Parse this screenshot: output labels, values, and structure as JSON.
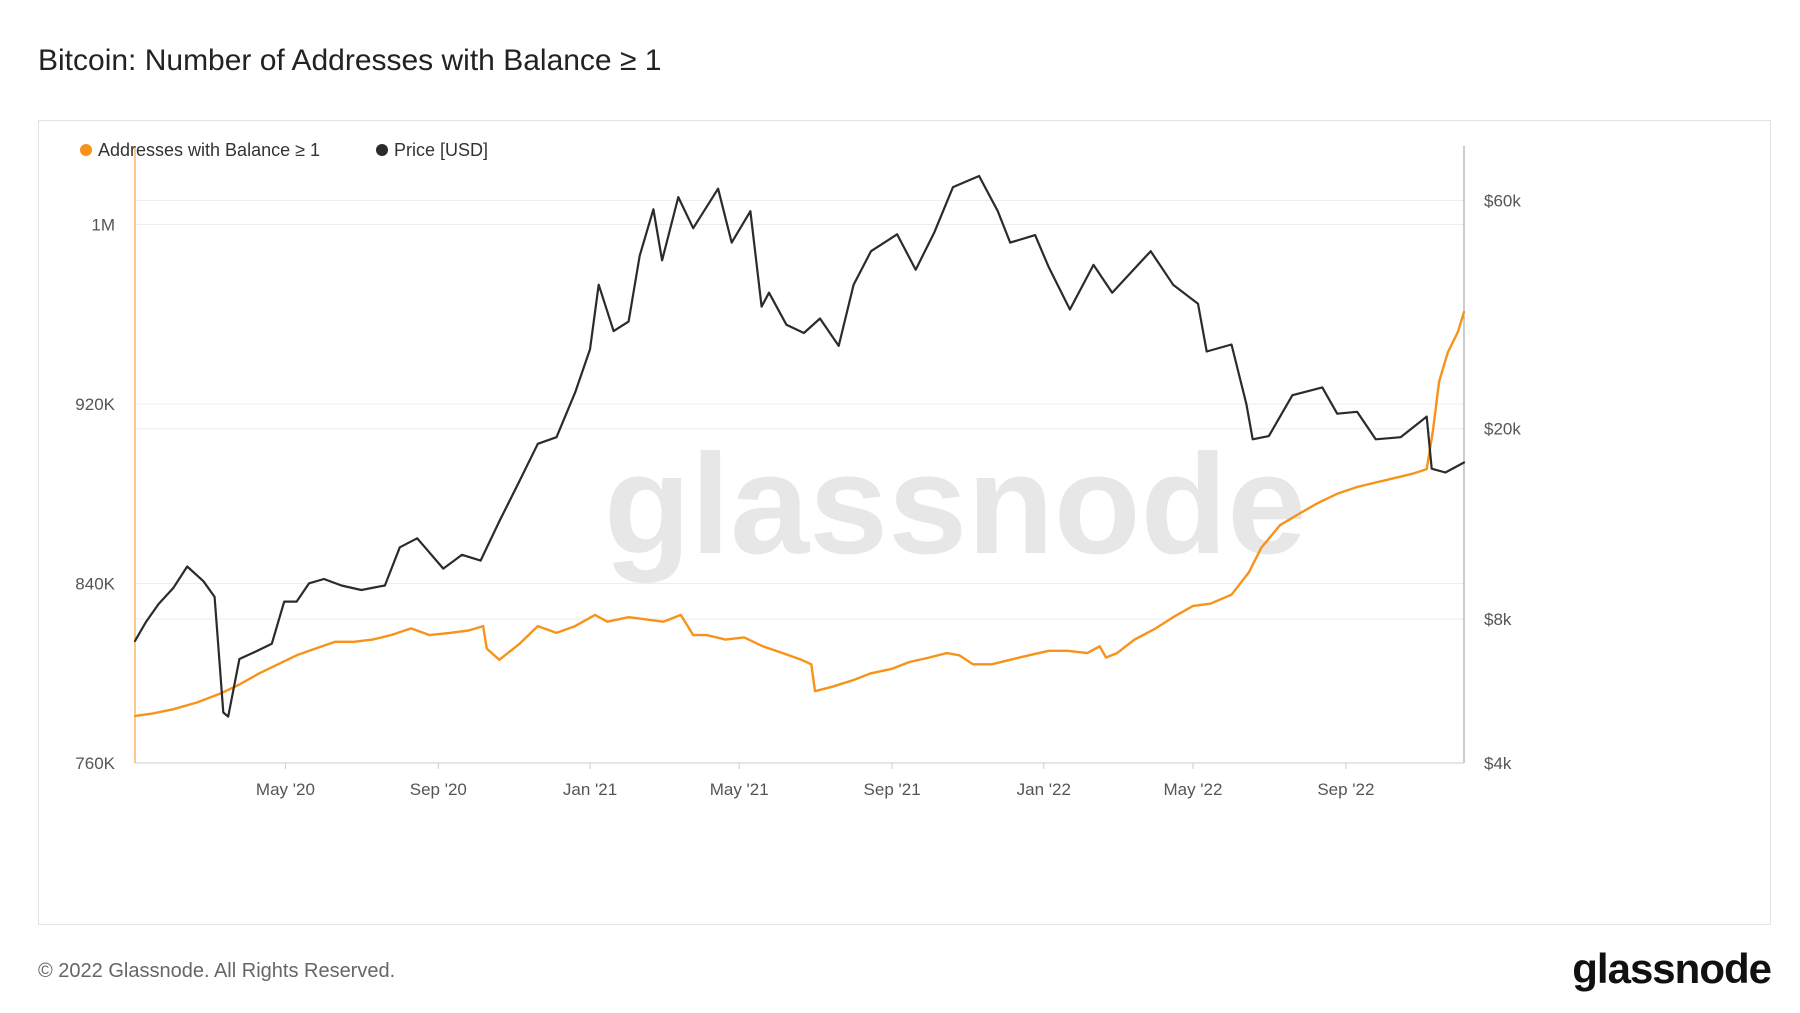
{
  "page": {
    "title": "Bitcoin: Number of Addresses with Balance ≥ 1",
    "copyright": "© 2022 Glassnode. All Rights Reserved.",
    "logo": "glassnode",
    "watermark": "glassnode"
  },
  "colors": {
    "addresses": "#f7931a",
    "price": "#2b2b2b",
    "grid": "#ededed",
    "axis_text": "#555555"
  },
  "chart_data": {
    "type": "line",
    "title": "Bitcoin: Number of Addresses with Balance ≥ 1",
    "legend_position": "top-left",
    "grid": true,
    "x_ticks": [
      "May '20",
      "Sep '20",
      "Jan '21",
      "May '21",
      "Sep '21",
      "Jan '22",
      "May '22",
      "Sep '22"
    ],
    "x_tick_dates": [
      "2020-05-01",
      "2020-09-01",
      "2021-01-01",
      "2021-05-01",
      "2021-09-01",
      "2022-01-01",
      "2022-05-01",
      "2022-09-01"
    ],
    "x_range": [
      "2020-01-01",
      "2022-12-05"
    ],
    "y_left": {
      "ticks": [
        760000,
        840000,
        920000,
        1000000
      ],
      "tick_labels": [
        "760K",
        "840K",
        "920K",
        "1M"
      ],
      "range": [
        760000,
        1035000
      ]
    },
    "y_right": {
      "scale": "log",
      "ticks": [
        4000,
        8000,
        20000,
        60000
      ],
      "tick_labels": [
        "$4k",
        "$8k",
        "$20k",
        "$60k"
      ],
      "range": [
        4000,
        78000
      ]
    },
    "series": [
      {
        "name": "Addresses with Balance ≥ 1",
        "axis": "left",
        "color": "#f7931a",
        "points": [
          [
            "2020-01-01",
            781000
          ],
          [
            "2020-01-15",
            782000
          ],
          [
            "2020-02-01",
            784000
          ],
          [
            "2020-02-20",
            787000
          ],
          [
            "2020-03-10",
            791000
          ],
          [
            "2020-03-25",
            795000
          ],
          [
            "2020-04-10",
            800000
          ],
          [
            "2020-04-25",
            804000
          ],
          [
            "2020-05-10",
            808000
          ],
          [
            "2020-05-25",
            811000
          ],
          [
            "2020-06-10",
            814000
          ],
          [
            "2020-06-25",
            814000
          ],
          [
            "2020-07-10",
            815000
          ],
          [
            "2020-07-25",
            817000
          ],
          [
            "2020-08-10",
            820000
          ],
          [
            "2020-08-25",
            817000
          ],
          [
            "2020-09-10",
            818000
          ],
          [
            "2020-09-25",
            819000
          ],
          [
            "2020-10-07",
            821000
          ],
          [
            "2020-10-10",
            811000
          ],
          [
            "2020-10-20",
            806000
          ],
          [
            "2020-11-05",
            813000
          ],
          [
            "2020-11-20",
            821000
          ],
          [
            "2020-12-05",
            818000
          ],
          [
            "2020-12-20",
            821000
          ],
          [
            "2021-01-05",
            826000
          ],
          [
            "2021-01-15",
            823000
          ],
          [
            "2021-02-01",
            825000
          ],
          [
            "2021-02-15",
            824000
          ],
          [
            "2021-03-01",
            823000
          ],
          [
            "2021-03-15",
            826000
          ],
          [
            "2021-03-25",
            817000
          ],
          [
            "2021-04-05",
            817000
          ],
          [
            "2021-04-20",
            815000
          ],
          [
            "2021-05-05",
            816000
          ],
          [
            "2021-05-20",
            812000
          ],
          [
            "2021-06-05",
            809000
          ],
          [
            "2021-06-20",
            806000
          ],
          [
            "2021-06-28",
            804000
          ],
          [
            "2021-07-01",
            792000
          ],
          [
            "2021-07-15",
            794000
          ],
          [
            "2021-08-01",
            797000
          ],
          [
            "2021-08-15",
            800000
          ],
          [
            "2021-09-01",
            802000
          ],
          [
            "2021-09-15",
            805000
          ],
          [
            "2021-10-01",
            807000
          ],
          [
            "2021-10-15",
            809000
          ],
          [
            "2021-10-25",
            808000
          ],
          [
            "2021-11-05",
            804000
          ],
          [
            "2021-11-20",
            804000
          ],
          [
            "2021-12-05",
            806000
          ],
          [
            "2021-12-20",
            808000
          ],
          [
            "2022-01-05",
            810000
          ],
          [
            "2022-01-20",
            810000
          ],
          [
            "2022-02-05",
            809000
          ],
          [
            "2022-02-15",
            812000
          ],
          [
            "2022-02-20",
            807000
          ],
          [
            "2022-03-01",
            809000
          ],
          [
            "2022-03-15",
            815000
          ],
          [
            "2022-04-01",
            820000
          ],
          [
            "2022-04-15",
            825000
          ],
          [
            "2022-05-01",
            830000
          ],
          [
            "2022-05-15",
            831000
          ],
          [
            "2022-06-01",
            835000
          ],
          [
            "2022-06-15",
            845000
          ],
          [
            "2022-06-25",
            856000
          ],
          [
            "2022-07-10",
            866000
          ],
          [
            "2022-07-25",
            871000
          ],
          [
            "2022-08-10",
            876000
          ],
          [
            "2022-08-25",
            880000
          ],
          [
            "2022-09-10",
            883000
          ],
          [
            "2022-09-25",
            885000
          ],
          [
            "2022-10-10",
            887000
          ],
          [
            "2022-10-25",
            889000
          ],
          [
            "2022-11-05",
            891000
          ],
          [
            "2022-11-10",
            908000
          ],
          [
            "2022-11-15",
            930000
          ],
          [
            "2022-11-22",
            943000
          ],
          [
            "2022-11-30",
            952000
          ],
          [
            "2022-12-05",
            961000
          ]
        ]
      },
      {
        "name": "Price [USD]",
        "axis": "right",
        "color": "#2b2b2b",
        "points": [
          [
            "2020-01-01",
            7200
          ],
          [
            "2020-01-10",
            7900
          ],
          [
            "2020-01-20",
            8600
          ],
          [
            "2020-02-01",
            9300
          ],
          [
            "2020-02-12",
            10300
          ],
          [
            "2020-02-25",
            9600
          ],
          [
            "2020-03-05",
            8900
          ],
          [
            "2020-03-12",
            5100
          ],
          [
            "2020-03-16",
            5000
          ],
          [
            "2020-03-25",
            6600
          ],
          [
            "2020-04-05",
            6800
          ],
          [
            "2020-04-20",
            7100
          ],
          [
            "2020-04-30",
            8700
          ],
          [
            "2020-05-10",
            8700
          ],
          [
            "2020-05-20",
            9500
          ],
          [
            "2020-06-01",
            9700
          ],
          [
            "2020-06-15",
            9400
          ],
          [
            "2020-07-01",
            9200
          ],
          [
            "2020-07-20",
            9400
          ],
          [
            "2020-08-01",
            11300
          ],
          [
            "2020-08-15",
            11800
          ],
          [
            "2020-09-05",
            10200
          ],
          [
            "2020-09-20",
            10900
          ],
          [
            "2020-10-05",
            10600
          ],
          [
            "2020-10-20",
            12800
          ],
          [
            "2020-11-05",
            15500
          ],
          [
            "2020-11-20",
            18600
          ],
          [
            "2020-12-05",
            19200
          ],
          [
            "2020-12-20",
            23800
          ],
          [
            "2021-01-01",
            29300
          ],
          [
            "2021-01-08",
            40000
          ],
          [
            "2021-01-20",
            32000
          ],
          [
            "2021-02-01",
            33500
          ],
          [
            "2021-02-10",
            46000
          ],
          [
            "2021-02-21",
            57500
          ],
          [
            "2021-02-28",
            45000
          ],
          [
            "2021-03-13",
            61000
          ],
          [
            "2021-03-25",
            52500
          ],
          [
            "2021-04-14",
            63500
          ],
          [
            "2021-04-25",
            49000
          ],
          [
            "2021-05-10",
            57000
          ],
          [
            "2021-05-19",
            36000
          ],
          [
            "2021-05-25",
            38500
          ],
          [
            "2021-06-08",
            33000
          ],
          [
            "2021-06-22",
            31700
          ],
          [
            "2021-07-05",
            34000
          ],
          [
            "2021-07-20",
            29800
          ],
          [
            "2021-08-01",
            40000
          ],
          [
            "2021-08-15",
            47000
          ],
          [
            "2021-09-05",
            51000
          ],
          [
            "2021-09-20",
            43000
          ],
          [
            "2021-10-05",
            51500
          ],
          [
            "2021-10-20",
            64000
          ],
          [
            "2021-11-10",
            67500
          ],
          [
            "2021-11-25",
            57000
          ],
          [
            "2021-12-05",
            49000
          ],
          [
            "2021-12-25",
            50800
          ],
          [
            "2022-01-05",
            43500
          ],
          [
            "2022-01-22",
            35500
          ],
          [
            "2022-02-10",
            44000
          ],
          [
            "2022-02-25",
            38500
          ],
          [
            "2022-03-28",
            47000
          ],
          [
            "2022-04-15",
            40000
          ],
          [
            "2022-05-05",
            36500
          ],
          [
            "2022-05-12",
            29000
          ],
          [
            "2022-06-01",
            30000
          ],
          [
            "2022-06-13",
            22500
          ],
          [
            "2022-06-18",
            19000
          ],
          [
            "2022-07-01",
            19300
          ],
          [
            "2022-07-20",
            23500
          ],
          [
            "2022-08-13",
            24400
          ],
          [
            "2022-08-25",
            21500
          ],
          [
            "2022-09-10",
            21700
          ],
          [
            "2022-09-25",
            19000
          ],
          [
            "2022-10-15",
            19200
          ],
          [
            "2022-11-05",
            21200
          ],
          [
            "2022-11-09",
            16500
          ],
          [
            "2022-11-20",
            16200
          ],
          [
            "2022-12-05",
            17000
          ]
        ]
      }
    ]
  }
}
